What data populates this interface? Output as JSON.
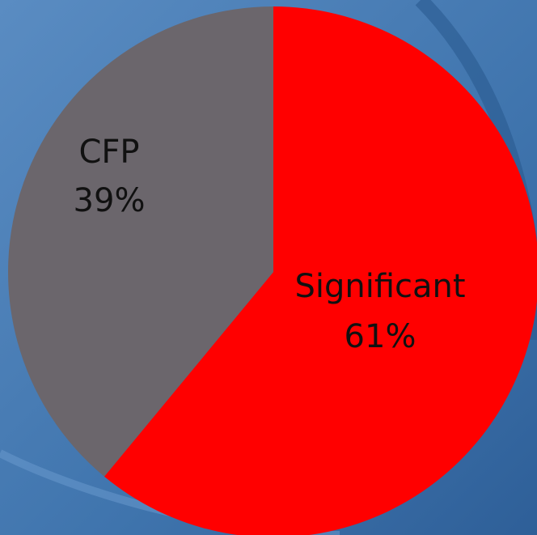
{
  "chart_data": {
    "type": "pie",
    "categories": [
      "Significant",
      "CFP"
    ],
    "values": [
      61,
      39
    ],
    "value_labels": [
      "61%",
      "39%"
    ],
    "colors": [
      "#ff0000",
      "#6b666c"
    ]
  }
}
